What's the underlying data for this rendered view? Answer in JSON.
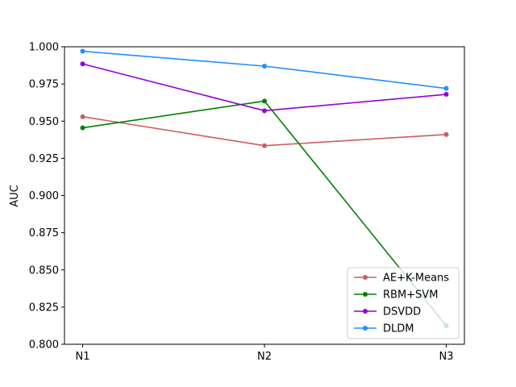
{
  "chart_data": {
    "type": "line",
    "title": "",
    "xlabel": "",
    "ylabel": "AUC",
    "categories": [
      "N1",
      "N2",
      "N3"
    ],
    "ylim": [
      0.8,
      1.0
    ],
    "yticks": [
      "0.800",
      "0.825",
      "0.850",
      "0.875",
      "0.900",
      "0.925",
      "0.950",
      "0.975",
      "1.000"
    ],
    "grid": false,
    "legend_position": "lower-right",
    "series": [
      {
        "name": "AE+K-Means",
        "color": "#cd5c5c",
        "values": [
          0.953,
          0.9335,
          0.941
        ]
      },
      {
        "name": "RBM+SVM",
        "color": "#008000",
        "values": [
          0.9455,
          0.9635,
          0.8125
        ]
      },
      {
        "name": "DSVDD",
        "color": "#9400d3",
        "values": [
          0.9885,
          0.957,
          0.968
        ]
      },
      {
        "name": "DLDM",
        "color": "#1e90ff",
        "values": [
          0.997,
          0.987,
          0.972
        ]
      }
    ]
  }
}
